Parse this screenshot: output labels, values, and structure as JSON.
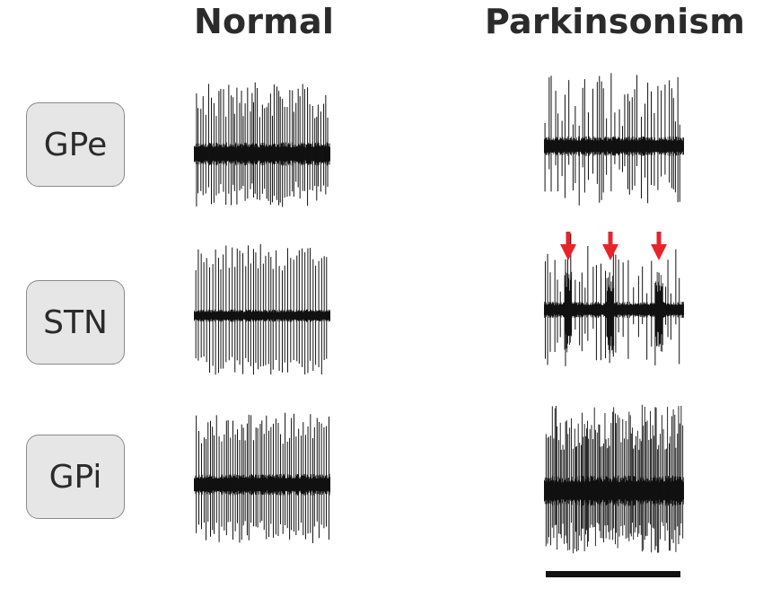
{
  "columns": [
    {
      "key": "normal",
      "title": "Normal"
    },
    {
      "key": "parkinsonism",
      "title": "Parkinsonism"
    }
  ],
  "regions": [
    {
      "key": "gpe",
      "label": "GPe"
    },
    {
      "key": "stn",
      "label": "STN"
    },
    {
      "key": "gpi",
      "label": "GPi"
    }
  ],
  "annotations": {
    "burst_arrow_color": "#e8242b",
    "burst_arrow_count": 3
  },
  "colors": {
    "trace": "#111111",
    "box_fill": "#e6e6e6",
    "box_border": "#8a8a8a",
    "title_text": "#2b2b2b"
  }
}
